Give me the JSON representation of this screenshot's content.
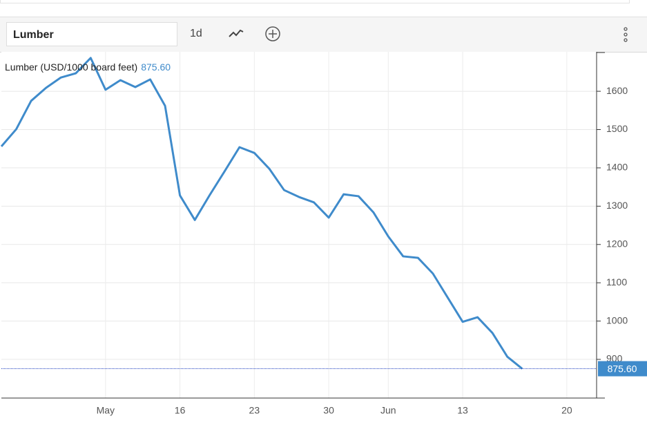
{
  "toolbar": {
    "symbol": "Lumber",
    "interval": "1d"
  },
  "chart_data": {
    "type": "line",
    "title": "Lumber (USD/1000 board feet)",
    "categories": [
      null,
      null,
      null,
      null,
      null,
      null,
      null,
      "May",
      null,
      null,
      null,
      null,
      "16",
      null,
      null,
      null,
      null,
      "23",
      null,
      null,
      null,
      null,
      "30",
      null,
      null,
      null,
      "Jun",
      null,
      null,
      null,
      null,
      "13",
      null,
      null,
      null,
      null,
      null,
      null,
      "20",
      null
    ],
    "series": [
      {
        "name": "Lumber",
        "color": "#3f8bcb",
        "values": [
          1456,
          1501,
          1575,
          1609,
          1636,
          1647,
          1687,
          1604,
          1629,
          1611,
          1631,
          1562,
          1328,
          1264,
          1329,
          1391,
          1454,
          1439,
          1398,
          1342,
          1324,
          1310,
          1270,
          1331,
          1326,
          1284,
          1221,
          1169,
          1165,
          1124,
          1061,
          998,
          1010,
          969,
          907,
          875.6,
          null,
          null,
          null,
          null
        ],
        "value_labels": [
          null,
          null,
          null,
          null,
          null,
          null,
          null,
          null,
          null,
          null,
          null,
          null,
          null,
          null,
          null,
          null,
          null,
          null,
          null,
          null,
          null,
          null,
          null,
          null,
          null,
          null,
          null,
          null,
          null,
          null,
          null,
          null,
          null,
          null,
          null,
          "875.60",
          null,
          null,
          null,
          null
        ]
      }
    ],
    "ylim": [
      799,
      1703
    ],
    "yticks": [
      900,
      1000,
      1100,
      1200,
      1300,
      1400,
      1500,
      1600
    ],
    "grid": true
  }
}
